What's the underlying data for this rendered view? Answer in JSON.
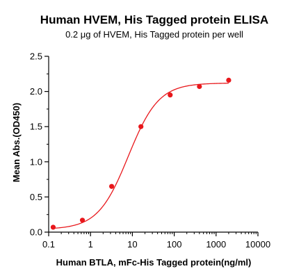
{
  "chart_data": {
    "type": "scatter",
    "title": "Human HVEM, His Tagged protein ELISA",
    "subtitle": "0.2 μg of HVEM, His Tagged protein per well",
    "xlabel": "Human BTLA, mFc-His Tagged protein(ng/ml)",
    "ylabel": "Mean Abs.(OD450)",
    "x_scale": "log",
    "xlim": [
      0.1,
      10000
    ],
    "ylim": [
      0,
      2.5
    ],
    "x_ticks": [
      0.1,
      1,
      10,
      100,
      1000,
      10000
    ],
    "x_tick_labels": [
      "0.1",
      "1",
      "10",
      "100",
      "1000",
      "10000"
    ],
    "y_ticks": [
      0,
      0.5,
      1,
      1.5,
      2,
      2.5
    ],
    "y_tick_labels": [
      "0.0",
      "0.5",
      "1.0",
      "1.5",
      "2.0",
      "2.5"
    ],
    "grid": false,
    "series": [
      {
        "color": "#e8171b",
        "x": [
          0.128,
          0.64,
          3.2,
          16,
          80,
          400,
          2000
        ],
        "y": [
          0.07,
          0.17,
          0.65,
          1.5,
          1.95,
          2.07,
          2.16
        ],
        "fit_curve": {
          "model": "4PL",
          "bottom": 0.04,
          "top": 2.12,
          "ec50": 8,
          "hill": 1.2
        }
      }
    ]
  }
}
